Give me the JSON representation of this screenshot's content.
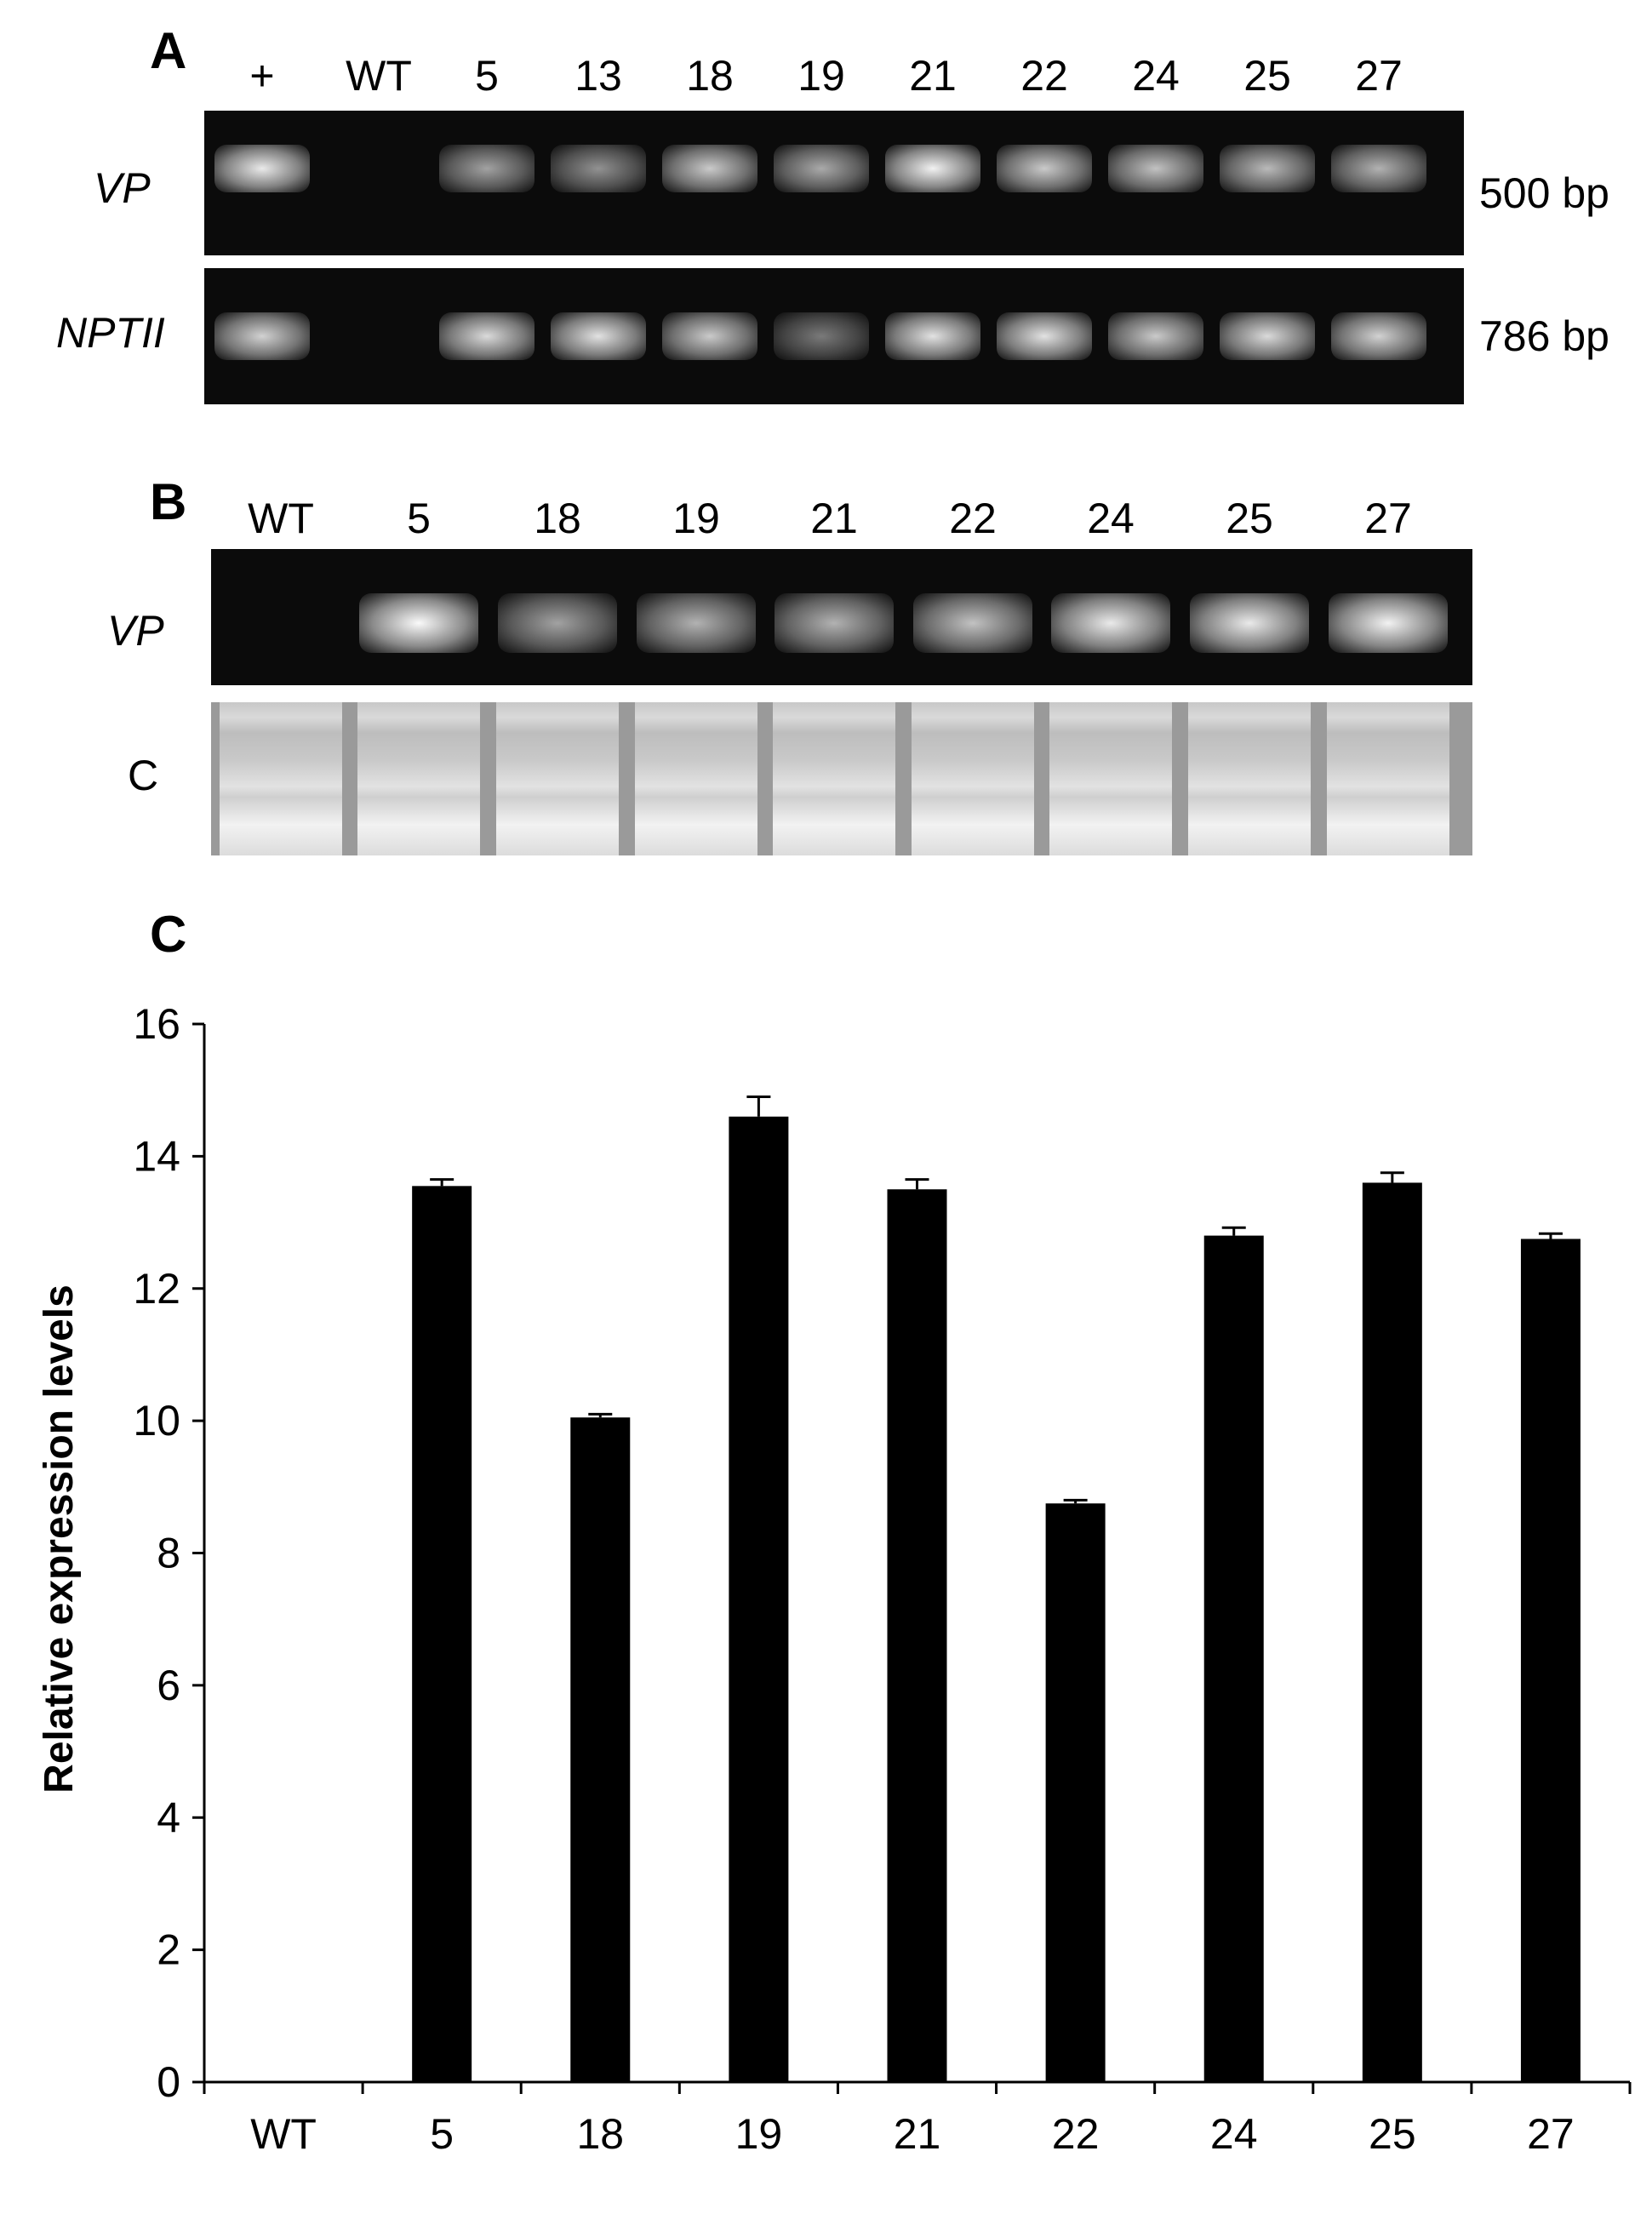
{
  "panel_a": {
    "letter": "A",
    "lanes": [
      "+",
      "WT",
      "5",
      "13",
      "18",
      "19",
      "21",
      "22",
      "24",
      "25",
      "27"
    ],
    "rows": [
      {
        "label": "VP",
        "size": "500 bp",
        "band_intensity": [
          0.9,
          0,
          0.45,
          0.35,
          0.7,
          0.5,
          0.95,
          0.7,
          0.65,
          0.6,
          0.55
        ]
      },
      {
        "label": "NPTII",
        "size": "786 bp",
        "band_intensity": [
          0.75,
          0,
          0.8,
          0.85,
          0.7,
          0.2,
          0.85,
          0.85,
          0.7,
          0.8,
          0.75
        ]
      }
    ]
  },
  "panel_b": {
    "letter": "B",
    "lanes": [
      "WT",
      "5",
      "18",
      "19",
      "21",
      "22",
      "24",
      "25",
      "27"
    ],
    "rows": [
      {
        "label": "VP",
        "band_intensity": [
          0,
          1.0,
          0.45,
          0.55,
          0.55,
          0.65,
          0.9,
          0.9,
          0.95
        ]
      },
      {
        "label": "C"
      }
    ]
  },
  "panel_c": {
    "letter": "C"
  },
  "chart_data": {
    "type": "bar",
    "categories": [
      "WT",
      "5",
      "18",
      "19",
      "21",
      "22",
      "24",
      "25",
      "27"
    ],
    "values": [
      0,
      13.55,
      10.05,
      14.6,
      13.5,
      8.75,
      12.8,
      13.6,
      12.75
    ],
    "errors": [
      0,
      0.1,
      0.05,
      0.3,
      0.15,
      0.05,
      0.12,
      0.15,
      0.08
    ],
    "title": "",
    "xlabel": "",
    "ylabel": "Relative expression levels",
    "ylim": [
      0,
      16
    ],
    "yticks": [
      0,
      2,
      4,
      6,
      8,
      10,
      12,
      14,
      16
    ],
    "grid": false,
    "bar_color": "#000000"
  }
}
